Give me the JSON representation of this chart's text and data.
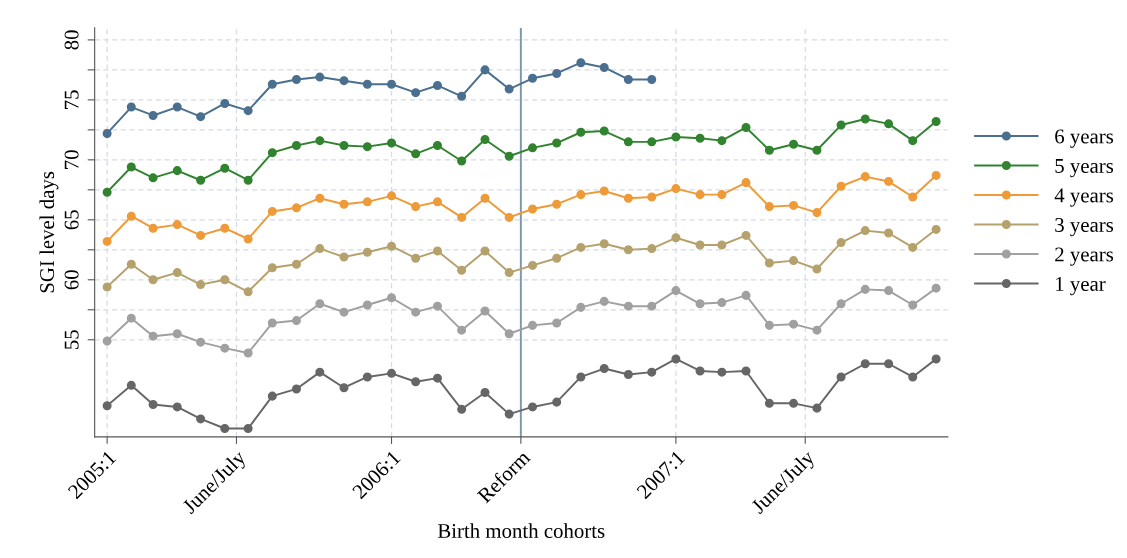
{
  "chart_data": {
    "type": "line",
    "xlabel": "Birth month cohorts",
    "ylabel": "SGI level days",
    "x": [
      "2005-01",
      "2005-02",
      "2005-03",
      "2005-04",
      "2005-05",
      "2005-06",
      "2005-07",
      "2005-08",
      "2005-09",
      "2005-10",
      "2005-11",
      "2005-12",
      "2006-01",
      "2006-02",
      "2006-03",
      "2006-04",
      "2006-05",
      "2006-06",
      "2006-07",
      "2006-08",
      "2006-09",
      "2006-10",
      "2006-11",
      "2006-12",
      "2007-01",
      "2007-02",
      "2007-03",
      "2007-04",
      "2007-05",
      "2007-06",
      "2007-07",
      "2007-08",
      "2007-09",
      "2007-10",
      "2007-11",
      "2007-12"
    ],
    "series": [
      {
        "name": "6 years",
        "color": "#4a6f8f",
        "values": [
          72.2,
          74.4,
          73.7,
          74.4,
          73.6,
          74.7,
          74.1,
          76.3,
          76.7,
          76.9,
          76.6,
          76.3,
          76.3,
          75.6,
          76.2,
          75.3,
          77.5,
          75.9,
          76.8,
          77.2,
          78.1,
          77.7,
          76.7,
          76.7,
          null,
          null,
          null,
          null,
          null,
          null,
          null,
          null,
          null,
          null,
          null,
          null
        ]
      },
      {
        "name": "5 years",
        "color": "#31832f",
        "values": [
          67.3,
          69.4,
          68.5,
          69.1,
          68.3,
          69.3,
          68.3,
          70.6,
          71.2,
          71.6,
          71.2,
          71.1,
          71.4,
          70.5,
          71.2,
          69.9,
          71.7,
          70.3,
          71.0,
          71.4,
          72.3,
          72.4,
          71.5,
          71.5,
          71.9,
          71.8,
          71.6,
          72.7,
          70.8,
          71.3,
          70.8,
          72.9,
          73.4,
          73.0,
          71.6,
          73.2
        ]
      },
      {
        "name": "4 years",
        "color": "#ee9a38",
        "values": [
          63.2,
          65.3,
          64.3,
          64.6,
          63.7,
          64.3,
          63.4,
          65.7,
          66.0,
          66.8,
          66.3,
          66.5,
          67.0,
          66.1,
          66.5,
          65.2,
          66.8,
          65.2,
          65.9,
          66.3,
          67.1,
          67.4,
          66.8,
          66.9,
          67.6,
          67.1,
          67.1,
          68.1,
          66.1,
          66.2,
          65.6,
          67.8,
          68.6,
          68.2,
          66.9,
          68.7
        ]
      },
      {
        "name": "3 years",
        "color": "#b5a16c",
        "values": [
          59.4,
          61.3,
          60.0,
          60.6,
          59.6,
          60.0,
          59.0,
          61.0,
          61.3,
          62.6,
          61.9,
          62.3,
          62.8,
          61.8,
          62.4,
          60.8,
          62.4,
          60.6,
          61.2,
          61.8,
          62.7,
          63.0,
          62.5,
          62.6,
          63.5,
          62.9,
          62.9,
          63.7,
          61.4,
          61.6,
          60.9,
          63.1,
          64.1,
          63.9,
          62.7,
          64.2
        ]
      },
      {
        "name": "2 years",
        "color": "#a0a0a0",
        "values": [
          54.9,
          56.8,
          55.3,
          55.5,
          54.8,
          54.3,
          53.9,
          56.4,
          56.6,
          58.0,
          57.3,
          57.9,
          58.5,
          57.3,
          57.8,
          55.8,
          57.4,
          55.5,
          56.2,
          56.4,
          57.7,
          58.2,
          57.8,
          57.8,
          59.1,
          58.0,
          58.1,
          58.7,
          56.2,
          56.3,
          55.8,
          58.0,
          59.2,
          59.1,
          57.9,
          59.3
        ]
      },
      {
        "name": "1 year",
        "color": "#666666",
        "values": [
          49.5,
          51.2,
          49.6,
          49.4,
          48.4,
          47.6,
          47.6,
          50.3,
          50.9,
          52.3,
          51.0,
          51.9,
          52.2,
          51.5,
          51.8,
          49.2,
          50.6,
          48.8,
          49.4,
          49.8,
          51.9,
          52.6,
          52.1,
          52.3,
          53.4,
          52.4,
          52.3,
          52.4,
          49.7,
          49.7,
          49.3,
          51.9,
          53.0,
          53.0,
          51.9,
          53.4
        ]
      }
    ],
    "xlim": [
      "2004-12-16",
      "2007-12-16"
    ],
    "xticks": [
      {
        "value": "2005-01",
        "label": "2005:1"
      },
      {
        "value": "2005-06-16",
        "label": "June/July"
      },
      {
        "value": "2006-01",
        "label": "2006:1"
      },
      {
        "value": "2006-06-16",
        "label": "Reform"
      },
      {
        "value": "2007-01",
        "label": "2007:1"
      },
      {
        "value": "2007-06-16",
        "label": "June/July"
      }
    ],
    "ylim": [
      46.9,
      81
    ],
    "yticks": [
      55,
      {
        "value": 57.5,
        "label": null
      },
      60,
      {
        "value": 62.5,
        "label": null
      },
      65,
      {
        "value": 67.5,
        "label": null
      },
      70,
      {
        "value": 72.5,
        "label": null
      },
      75,
      {
        "value": 77.5,
        "label": null
      },
      80
    ],
    "ref_lines": [
      {
        "axis": "x",
        "value": "2006-06-16",
        "color": "#7f96b0"
      }
    ],
    "grid": true,
    "legend": "right",
    "marker": "circle",
    "line_style": "solid"
  }
}
